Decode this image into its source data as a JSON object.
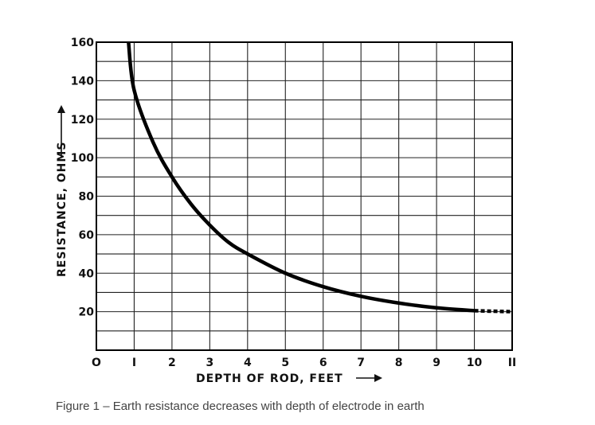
{
  "chart_data": {
    "type": "line",
    "title": "",
    "xlabel": "DEPTH OF ROD, FEET",
    "ylabel": "RESISTANCE, OHMS",
    "xlim": [
      0,
      11
    ],
    "ylim": [
      0,
      160
    ],
    "x_ticks": [
      0,
      1,
      2,
      3,
      4,
      5,
      6,
      7,
      8,
      9,
      10,
      11
    ],
    "x_tick_labels": [
      "O",
      "I",
      "2",
      "3",
      "4",
      "5",
      "6",
      "7",
      "8",
      "9",
      "10",
      "II"
    ],
    "y_ticks": [
      20,
      40,
      60,
      80,
      100,
      120,
      140,
      160
    ],
    "y_tick_labels": [
      "20",
      "40",
      "60",
      "80",
      "100",
      "120",
      "140",
      "160"
    ],
    "grid": true,
    "series": [
      {
        "values_x": [
          0.85,
          1,
          1.5,
          2,
          2.5,
          3,
          3.5,
          4,
          5,
          6,
          7,
          8,
          9,
          10
        ],
        "values_y": [
          160,
          135,
          108,
          90,
          76,
          65,
          56,
          50,
          40,
          33,
          28,
          24.5,
          22,
          20.5
        ],
        "style": "solid",
        "color": "#000000"
      },
      {
        "values_x": [
          10,
          11
        ],
        "values_y": [
          20.5,
          20
        ],
        "style": "dashed",
        "color": "#000000"
      }
    ]
  },
  "caption": "Figure 1 – Earth resistance decreases with depth of electrode in earth"
}
